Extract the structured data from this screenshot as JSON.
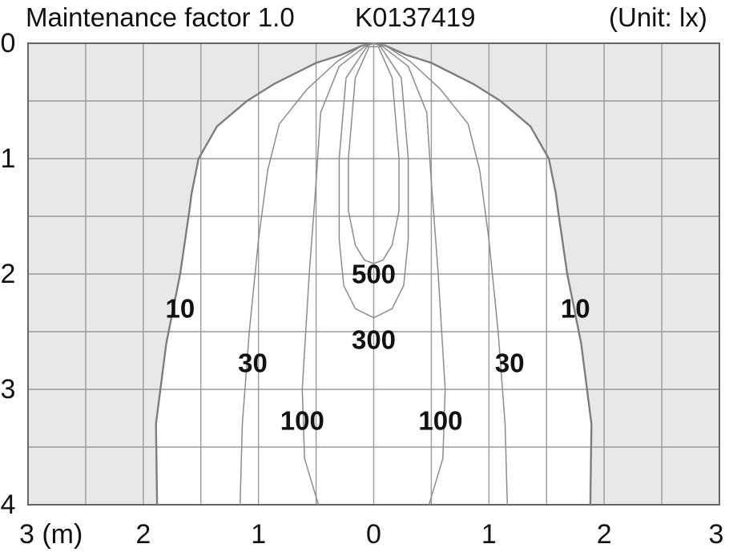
{
  "header": {
    "title": "Maintenance factor 1.0",
    "code": "K0137419",
    "unit": "(Unit: lx)"
  },
  "chart_data": {
    "type": "contour",
    "title": "Maintenance factor 1.0",
    "subtitle": "K0137419",
    "unit": "(Unit: lx)",
    "x_ticks": [
      "3 (m)",
      "2",
      "1",
      "0",
      "1",
      "2",
      "3"
    ],
    "y_ticks": [
      "0",
      "1",
      "2",
      "3",
      "4"
    ],
    "xlim": [
      -3,
      3
    ],
    "ylim": [
      0,
      4
    ],
    "grid": true,
    "contours": [
      {
        "name": "10",
        "value": 10,
        "label_positions": [
          [
            -1.68,
            2.3
          ],
          [
            1.75,
            2.3
          ]
        ],
        "points": [
          [
            -1.88,
            4.0
          ],
          [
            -1.89,
            3.3
          ],
          [
            -1.8,
            2.6
          ],
          [
            -1.68,
            2.0
          ],
          [
            -1.6,
            1.45
          ],
          [
            -1.58,
            1.3
          ],
          [
            -1.52,
            1.0
          ],
          [
            -1.36,
            0.72
          ],
          [
            -1.1,
            0.5
          ],
          [
            -0.86,
            0.35
          ],
          [
            -0.5,
            0.17
          ],
          [
            -0.28,
            0.1
          ],
          [
            -0.1,
            0.02
          ],
          [
            0.0,
            0.0
          ],
          [
            0.1,
            0.02
          ],
          [
            0.28,
            0.1
          ],
          [
            0.5,
            0.17
          ],
          [
            0.86,
            0.35
          ],
          [
            1.1,
            0.5
          ],
          [
            1.36,
            0.72
          ],
          [
            1.52,
            1.0
          ],
          [
            1.58,
            1.3
          ],
          [
            1.6,
            1.45
          ],
          [
            1.68,
            2.0
          ],
          [
            1.8,
            2.6
          ],
          [
            1.89,
            3.3
          ],
          [
            1.88,
            4.0
          ]
        ]
      },
      {
        "name": "30",
        "value": 30,
        "label_positions": [
          [
            -1.05,
            2.77
          ],
          [
            1.18,
            2.77
          ]
        ],
        "points": [
          [
            -1.16,
            4.0
          ],
          [
            -1.14,
            3.3
          ],
          [
            -1.08,
            2.5
          ],
          [
            -1.0,
            1.7
          ],
          [
            -0.92,
            1.1
          ],
          [
            -0.82,
            0.7
          ],
          [
            -0.58,
            0.4
          ],
          [
            -0.32,
            0.16
          ],
          [
            -0.1,
            0.02
          ],
          [
            0.0,
            0.0
          ],
          [
            0.1,
            0.02
          ],
          [
            0.32,
            0.16
          ],
          [
            0.58,
            0.4
          ],
          [
            0.82,
            0.7
          ],
          [
            0.92,
            1.1
          ],
          [
            1.0,
            1.7
          ],
          [
            1.08,
            2.5
          ],
          [
            1.14,
            3.3
          ],
          [
            1.16,
            4.0
          ]
        ]
      },
      {
        "name": "100",
        "value": 100,
        "label_positions": [
          [
            -0.62,
            3.27
          ],
          [
            0.58,
            3.27
          ]
        ],
        "points": [
          [
            -0.48,
            4.0
          ],
          [
            -0.6,
            3.6
          ],
          [
            -0.62,
            3.0
          ],
          [
            -0.56,
            2.0
          ],
          [
            -0.5,
            1.2
          ],
          [
            -0.46,
            0.6
          ],
          [
            -0.3,
            0.2
          ],
          [
            -0.08,
            0.03
          ],
          [
            0.0,
            0.0
          ],
          [
            0.08,
            0.03
          ],
          [
            0.3,
            0.2
          ],
          [
            0.46,
            0.6
          ],
          [
            0.5,
            1.2
          ],
          [
            0.56,
            2.0
          ],
          [
            0.62,
            3.0
          ],
          [
            0.6,
            3.6
          ],
          [
            0.48,
            4.0
          ]
        ]
      },
      {
        "name": "300",
        "value": 300,
        "label_positions": [
          [
            0.0,
            2.57
          ]
        ],
        "points": [
          [
            -0.06,
            0.03
          ],
          [
            -0.24,
            0.3
          ],
          [
            -0.3,
            1.0
          ],
          [
            -0.3,
            1.7
          ],
          [
            -0.26,
            2.1
          ],
          [
            -0.16,
            2.3
          ],
          [
            0.0,
            2.38
          ],
          [
            0.16,
            2.3
          ],
          [
            0.26,
            2.1
          ],
          [
            0.3,
            1.7
          ],
          [
            0.3,
            1.0
          ],
          [
            0.24,
            0.3
          ],
          [
            0.06,
            0.03
          ]
        ],
        "closed": true
      },
      {
        "name": "500",
        "value": 500,
        "label_positions": [
          [
            0.0,
            2.0
          ]
        ],
        "points": [
          [
            -0.04,
            0.03
          ],
          [
            -0.16,
            0.3
          ],
          [
            -0.22,
            1.0
          ],
          [
            -0.22,
            1.45
          ],
          [
            -0.16,
            1.75
          ],
          [
            -0.08,
            1.88
          ],
          [
            0.0,
            1.91
          ],
          [
            0.08,
            1.88
          ],
          [
            0.16,
            1.75
          ],
          [
            0.22,
            1.45
          ],
          [
            0.22,
            1.0
          ],
          [
            0.16,
            0.3
          ],
          [
            0.04,
            0.03
          ]
        ],
        "closed": true
      }
    ],
    "colors": {
      "outside": "#e8e8e8",
      "inside": "#ffffff",
      "grid": "#9a9a9a",
      "contour": "#8c8c8c",
      "outer_contour": "#7d7d7d",
      "axis": "#666666"
    }
  }
}
